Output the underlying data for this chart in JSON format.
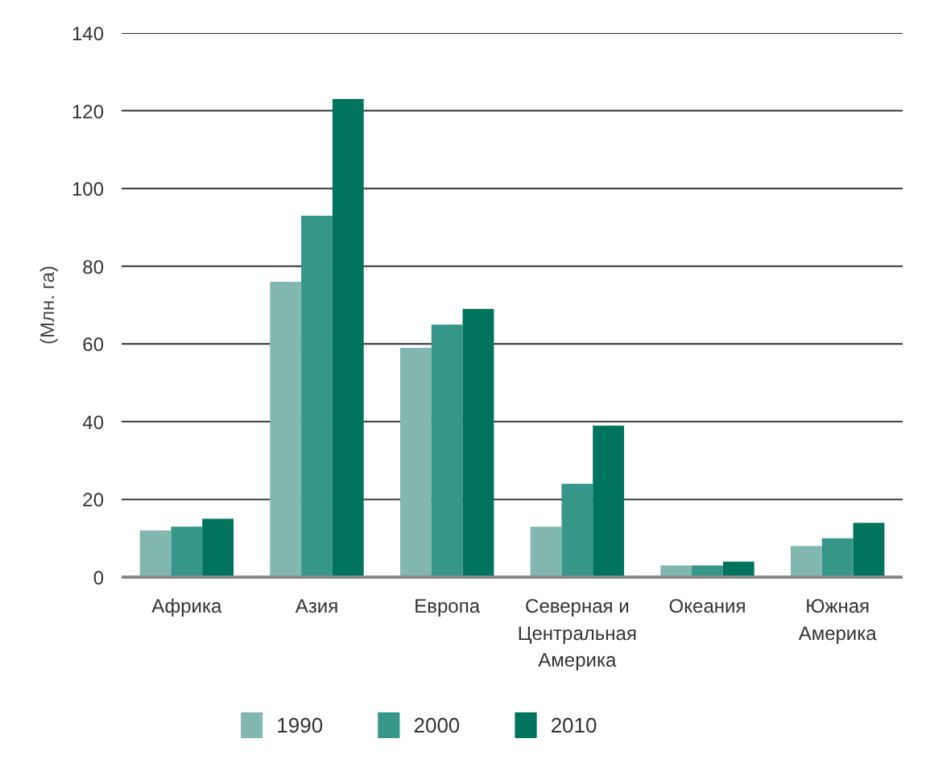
{
  "chart_data": {
    "type": "bar",
    "ylabel": "(Млн. га)",
    "categories": [
      "Африка",
      "Азия",
      "Европа",
      "Северная и\nЦентральная\nАмерика",
      "Океания",
      "Южная\nАмерика"
    ],
    "series": [
      {
        "name": "1990",
        "color": "#82b8b0",
        "values": [
          12,
          76,
          59,
          13,
          3,
          8
        ]
      },
      {
        "name": "2000",
        "color": "#36968a",
        "values": [
          13,
          93,
          65,
          24,
          3,
          10
        ]
      },
      {
        "name": "2010",
        "color": "#00735f",
        "values": [
          15,
          123,
          69,
          39,
          4,
          14
        ]
      }
    ],
    "ylim": [
      0,
      140
    ],
    "yticks": [
      0,
      20,
      40,
      60,
      80,
      100,
      120,
      140
    ],
    "grid": "y",
    "legend": "bottom"
  }
}
